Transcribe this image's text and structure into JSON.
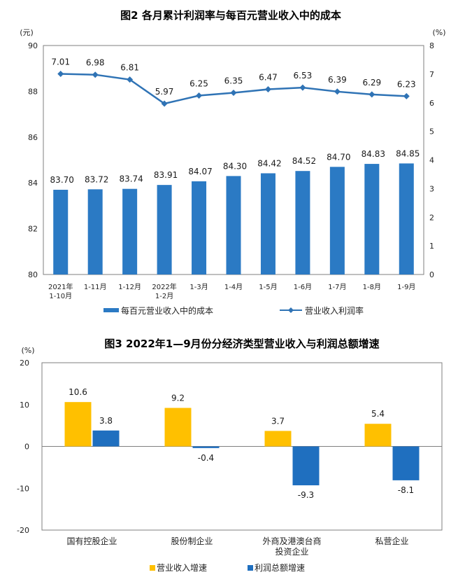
{
  "chart_data": [
    {
      "type": "bar",
      "title": "图2 各月累计利润率与每百元营业收入中的成本",
      "left_unit": "(元)",
      "right_unit": "(%)",
      "categories": [
        [
          "2021年",
          "1-10月"
        ],
        [
          "1-11月"
        ],
        [
          "1-12月"
        ],
        [
          "2022年",
          "1-2月"
        ],
        [
          "1-3月"
        ],
        [
          "1-4月"
        ],
        [
          "1-5月"
        ],
        [
          "1-6月"
        ],
        [
          "1-7月"
        ],
        [
          "1-8月"
        ],
        [
          "1-9月"
        ]
      ],
      "ylim_left": [
        80,
        90
      ],
      "yticks_left": [
        "80",
        "82",
        "84",
        "86",
        "88",
        "90"
      ],
      "ylim_right": [
        0,
        8
      ],
      "yticks_right": [
        "0",
        "1",
        "2",
        "3",
        "4",
        "5",
        "6",
        "7",
        "8"
      ],
      "series": [
        {
          "name": "每百元营业收入中的成本",
          "type": "bar",
          "axis": "left",
          "color": "#2B7AC4",
          "values": [
            83.7,
            83.72,
            83.74,
            83.91,
            84.07,
            84.3,
            84.42,
            84.52,
            84.7,
            84.83,
            84.85
          ],
          "labels": [
            "83.70",
            "83.72",
            "83.74",
            "83.91",
            "84.07",
            "84.30",
            "84.42",
            "84.52",
            "84.70",
            "84.83",
            "84.85"
          ]
        },
        {
          "name": "营业收入利润率",
          "type": "line",
          "axis": "right",
          "color": "#2F73B5",
          "values": [
            7.01,
            6.98,
            6.81,
            5.97,
            6.25,
            6.35,
            6.47,
            6.53,
            6.39,
            6.29,
            6.23
          ],
          "labels": [
            "7.01",
            "6.98",
            "6.81",
            "5.97",
            "6.25",
            "6.35",
            "6.47",
            "6.53",
            "6.39",
            "6.29",
            "6.23"
          ]
        }
      ]
    },
    {
      "type": "bar",
      "title": "图3 2022年1—9月份分经济类型营业收入与利润总额增速",
      "unit": "(%)",
      "categories": [
        [
          "国有控股企业"
        ],
        [
          "股份制企业"
        ],
        [
          "外商及港澳台商",
          "投资企业"
        ],
        [
          "私营企业"
        ]
      ],
      "ylim": [
        -20,
        20
      ],
      "yticks": [
        "-20",
        "-10",
        "0",
        "10",
        "20"
      ],
      "series": [
        {
          "name": "营业收入增速",
          "color": "#FFC000",
          "values": [
            10.6,
            9.2,
            3.7,
            5.4
          ],
          "labels": [
            "10.6",
            "9.2",
            "3.7",
            "5.4"
          ]
        },
        {
          "name": "利润总额增速",
          "color": "#1F6FBF",
          "values": [
            3.8,
            -0.4,
            -9.3,
            -8.1
          ],
          "labels": [
            "3.8",
            "-0.4",
            "-9.3",
            "-8.1"
          ]
        }
      ]
    }
  ]
}
